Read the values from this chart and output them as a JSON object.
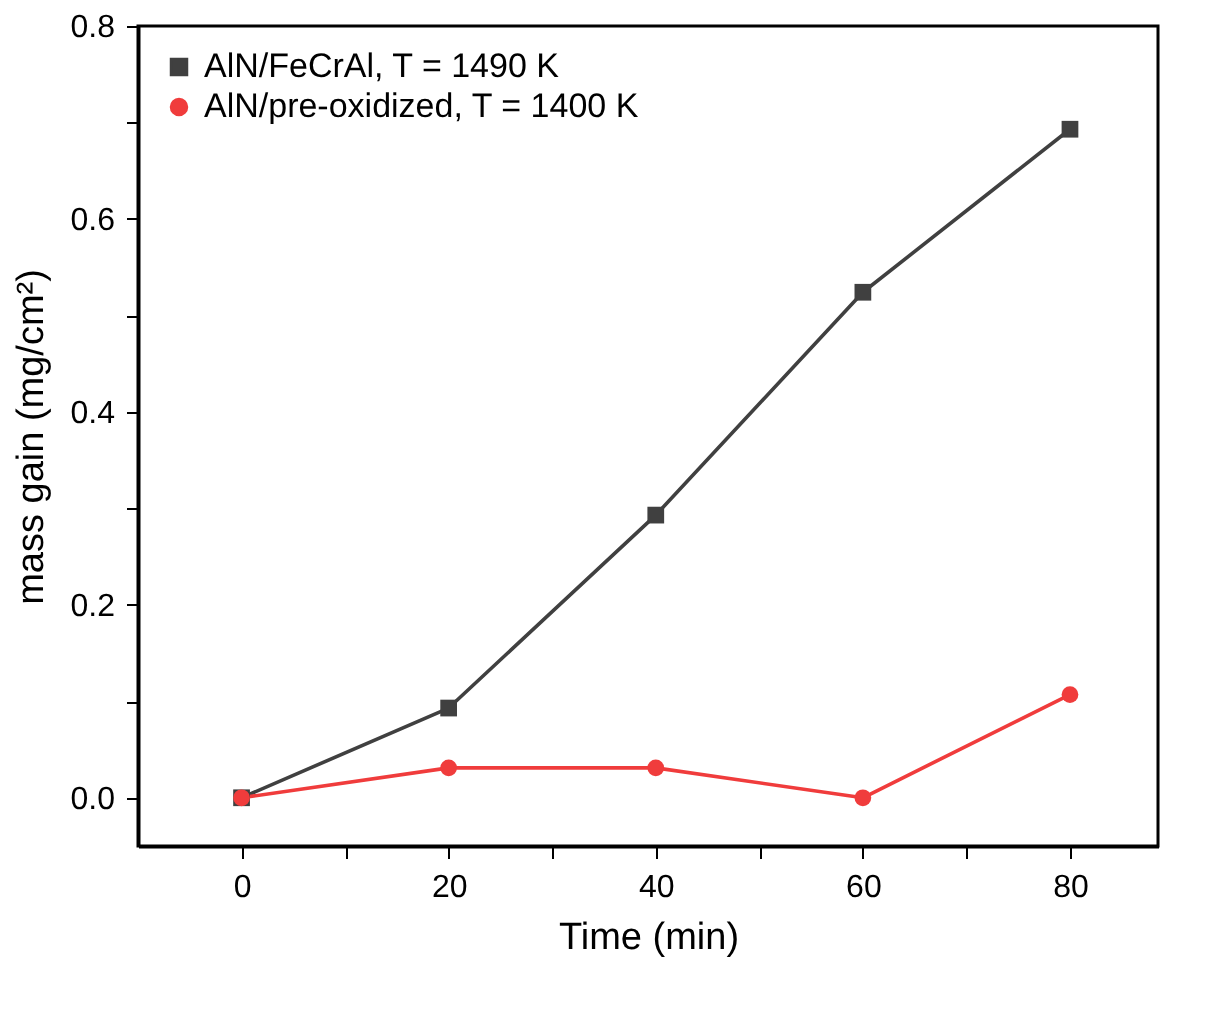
{
  "chart_data": {
    "type": "line",
    "xlabel": "Time (min)",
    "ylabel": "mass gain (mg/cm²)",
    "x": [
      0,
      20,
      40,
      60,
      80
    ],
    "series": [
      {
        "name": "AlN/FeCrAl, T = 1490 K",
        "color": "#404040",
        "marker": "square",
        "values": [
          0,
          0.093,
          0.293,
          0.524,
          0.693
        ]
      },
      {
        "name": "AlN/pre-oxidized, T = 1400 K",
        "color": "#f03c3c",
        "marker": "circle",
        "values": [
          0,
          0.031,
          0.031,
          0,
          0.107
        ]
      }
    ],
    "xlim": [
      -10,
      88.5
    ],
    "ylim": [
      -0.05,
      0.8
    ],
    "xticks": [
      0,
      {
        "value": 10,
        "label": null
      },
      20,
      {
        "value": 30,
        "label": null
      },
      40,
      {
        "value": 50,
        "label": null
      },
      60,
      {
        "value": 70,
        "label": null
      },
      80
    ],
    "yticks": [
      {
        "value": 0,
        "label": "0.0"
      },
      {
        "value": 0.1,
        "label": null
      },
      {
        "value": 0.2,
        "label": "0.2"
      },
      {
        "value": 0.3,
        "label": null
      },
      {
        "value": 0.4,
        "label": "0.4"
      },
      {
        "value": 0.5,
        "label": null
      },
      {
        "value": 0.6,
        "label": "0.6"
      },
      {
        "value": 0.7,
        "label": null
      },
      {
        "value": 0.8,
        "label": "0.8"
      }
    ],
    "grid": false,
    "legend": "top left",
    "line_style": "solid"
  }
}
